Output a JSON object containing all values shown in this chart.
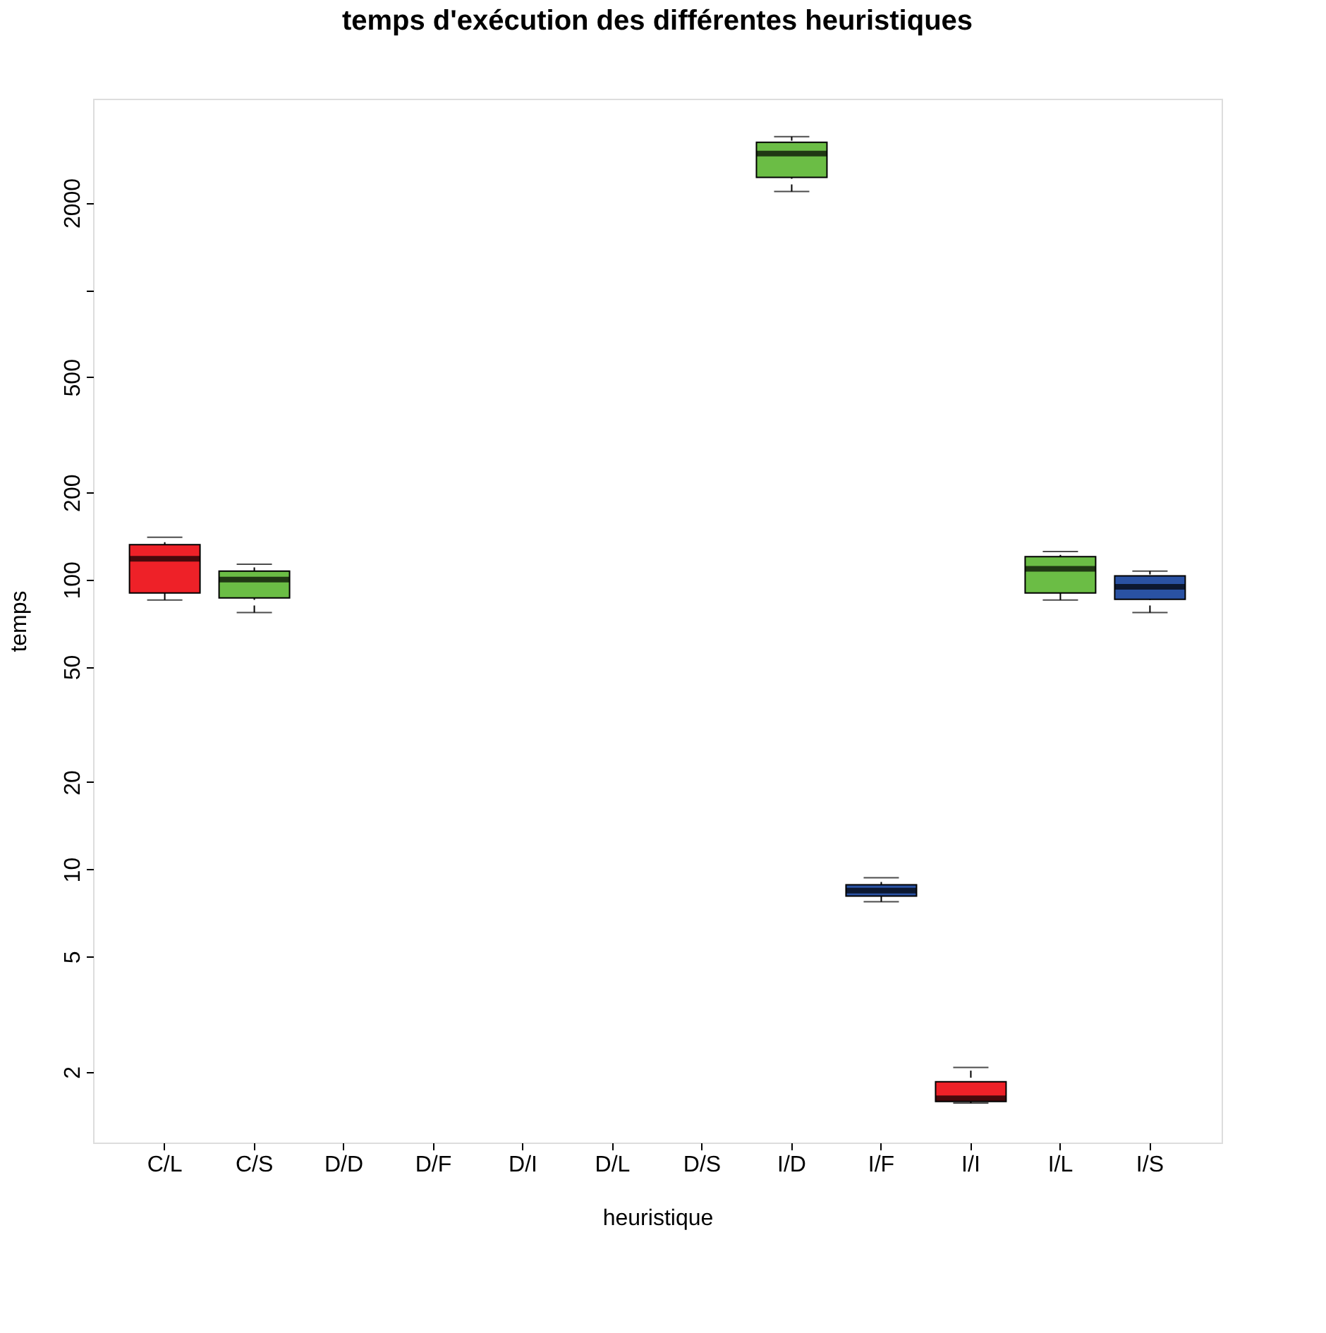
{
  "chart_data": {
    "type": "box",
    "title": "temps d'exécution des différentes heuristiques",
    "xlabel": "heuristique",
    "ylabel": "temps",
    "categories": [
      "C/L",
      "C/S",
      "D/D",
      "D/F",
      "D/I",
      "D/L",
      "D/S",
      "I/D",
      "I/F",
      "I/I",
      "I/L",
      "I/S"
    ],
    "colors": [
      "#ee2128",
      "#6bbd45",
      null,
      null,
      null,
      null,
      null,
      "#6bbd45",
      "#2a52a3",
      "#ee2128",
      "#6bbd45",
      "#2a52a3"
    ],
    "boxes": [
      {
        "low": 85,
        "q1": 90,
        "median": 118,
        "q3": 132,
        "high": 140
      },
      {
        "low": 77,
        "q1": 86.5,
        "median": 100,
        "q3": 107,
        "high": 113
      },
      null,
      null,
      null,
      null,
      null,
      {
        "low": 2187,
        "q1": 2445,
        "median": 2956,
        "q3": 3233,
        "high": 3383
      },
      {
        "low": 7.73,
        "q1": 8.09,
        "median": 8.45,
        "q3": 8.85,
        "high": 9.35
      },
      {
        "low": 1.56,
        "q1": 1.58,
        "median": 1.62,
        "q3": 1.85,
        "high": 2.07
      },
      {
        "low": 85,
        "q1": 90,
        "median": 109,
        "q3": 120,
        "high": 125
      },
      {
        "low": 77,
        "q1": 85.5,
        "median": 94.5,
        "q3": 103,
        "high": 107
      }
    ],
    "log": true,
    "ylim": [
      1.14,
      4571
    ],
    "yticks": [
      2,
      5,
      10,
      20,
      50,
      100,
      200,
      500,
      {
        "value": 1000,
        "label": null
      },
      2000
    ],
    "grid": false
  }
}
